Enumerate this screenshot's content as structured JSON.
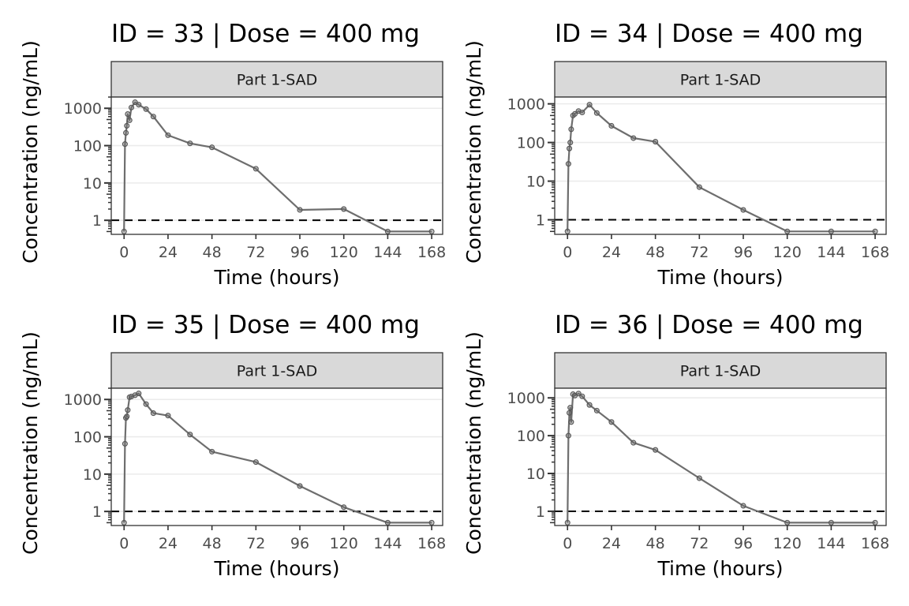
{
  "chart_data": [
    {
      "type": "line",
      "title": "ID = 33 | Dose = 400 mg",
      "strip": "Part 1-SAD",
      "xlabel": "Time (hours)",
      "ylabel": "Concentration (ng/mL)",
      "xlim": [
        -7,
        174
      ],
      "ylim": [
        0.42,
        2000
      ],
      "yscale": "log10",
      "xticks": [
        0,
        24,
        48,
        72,
        96,
        120,
        144,
        168
      ],
      "yticks": [
        1,
        10,
        100,
        1000
      ],
      "ytick_labels": [
        "1",
        "10",
        "100",
        "1000"
      ],
      "reference_line": {
        "y": 1,
        "style": "dashed"
      },
      "grid": "horizontal-major",
      "x": [
        0,
        0.5,
        1,
        1.5,
        2,
        3,
        4,
        6,
        8,
        12,
        16,
        24,
        36,
        48,
        72,
        96,
        120,
        144,
        168
      ],
      "y": [
        0.5,
        110,
        220,
        340,
        700,
        480,
        1050,
        1450,
        1250,
        950,
        600,
        190,
        115,
        90,
        24,
        1.9,
        2.0,
        0.5,
        0.5
      ]
    },
    {
      "type": "line",
      "title": "ID = 34 | Dose = 400 mg",
      "strip": "Part 1-SAD",
      "xlabel": "Time (hours)",
      "ylabel": "Concentration (ng/mL)",
      "xlim": [
        -7,
        174
      ],
      "ylim": [
        0.42,
        1500
      ],
      "yscale": "log10",
      "xticks": [
        0,
        24,
        48,
        72,
        96,
        120,
        144,
        168
      ],
      "yticks": [
        1,
        10,
        100,
        1000
      ],
      "ytick_labels": [
        "1",
        "10",
        "100",
        "1000"
      ],
      "reference_line": {
        "y": 1,
        "style": "dashed"
      },
      "grid": "horizontal-major",
      "x": [
        0,
        0.5,
        1,
        1.5,
        2,
        3,
        4,
        6,
        8,
        12,
        16,
        24,
        36,
        48,
        72,
        96,
        120,
        144,
        168
      ],
      "y": [
        0.5,
        28,
        70,
        100,
        220,
        500,
        550,
        650,
        600,
        950,
        580,
        270,
        130,
        105,
        7,
        1.8,
        0.5,
        0.5,
        0.5
      ]
    },
    {
      "type": "line",
      "title": "ID = 35 | Dose = 400 mg",
      "strip": "Part 1-SAD",
      "xlabel": "Time (hours)",
      "ylabel": "Concentration (ng/mL)",
      "xlim": [
        -7,
        174
      ],
      "ylim": [
        0.42,
        2000
      ],
      "yscale": "log10",
      "xticks": [
        0,
        24,
        48,
        72,
        96,
        120,
        144,
        168
      ],
      "yticks": [
        1,
        10,
        100,
        1000
      ],
      "ytick_labels": [
        "1",
        "10",
        "100",
        "1000"
      ],
      "reference_line": {
        "y": 1,
        "style": "dashed"
      },
      "grid": "horizontal-major",
      "x": [
        0,
        0.5,
        1,
        1.5,
        2,
        3,
        4,
        6,
        8,
        12,
        16,
        24,
        36,
        48,
        72,
        96,
        120,
        144,
        168
      ],
      "y": [
        0.5,
        65,
        320,
        350,
        520,
        1150,
        1200,
        1300,
        1450,
        750,
        430,
        370,
        115,
        40,
        21,
        4.8,
        1.3,
        0.5,
        0.5
      ]
    },
    {
      "type": "line",
      "title": "ID = 36 | Dose = 400 mg",
      "strip": "Part 1-SAD",
      "xlabel": "Time (hours)",
      "ylabel": "Concentration (ng/mL)",
      "xlim": [
        -7,
        174
      ],
      "ylim": [
        0.42,
        1800
      ],
      "yscale": "log10",
      "xticks": [
        0,
        24,
        48,
        72,
        96,
        120,
        144,
        168
      ],
      "yticks": [
        1,
        10,
        100,
        1000
      ],
      "ytick_labels": [
        "1",
        "10",
        "100",
        "1000"
      ],
      "reference_line": {
        "y": 1,
        "style": "dashed"
      },
      "grid": "horizontal-major",
      "x": [
        0,
        0.5,
        1,
        1.5,
        2,
        3,
        4,
        6,
        8,
        12,
        16,
        24,
        36,
        48,
        72,
        96,
        120,
        144,
        168
      ],
      "y": [
        0.5,
        100,
        400,
        550,
        230,
        1250,
        1150,
        1300,
        1100,
        650,
        460,
        230,
        65,
        42,
        7.5,
        1.4,
        0.5,
        0.5,
        0.5
      ]
    }
  ]
}
